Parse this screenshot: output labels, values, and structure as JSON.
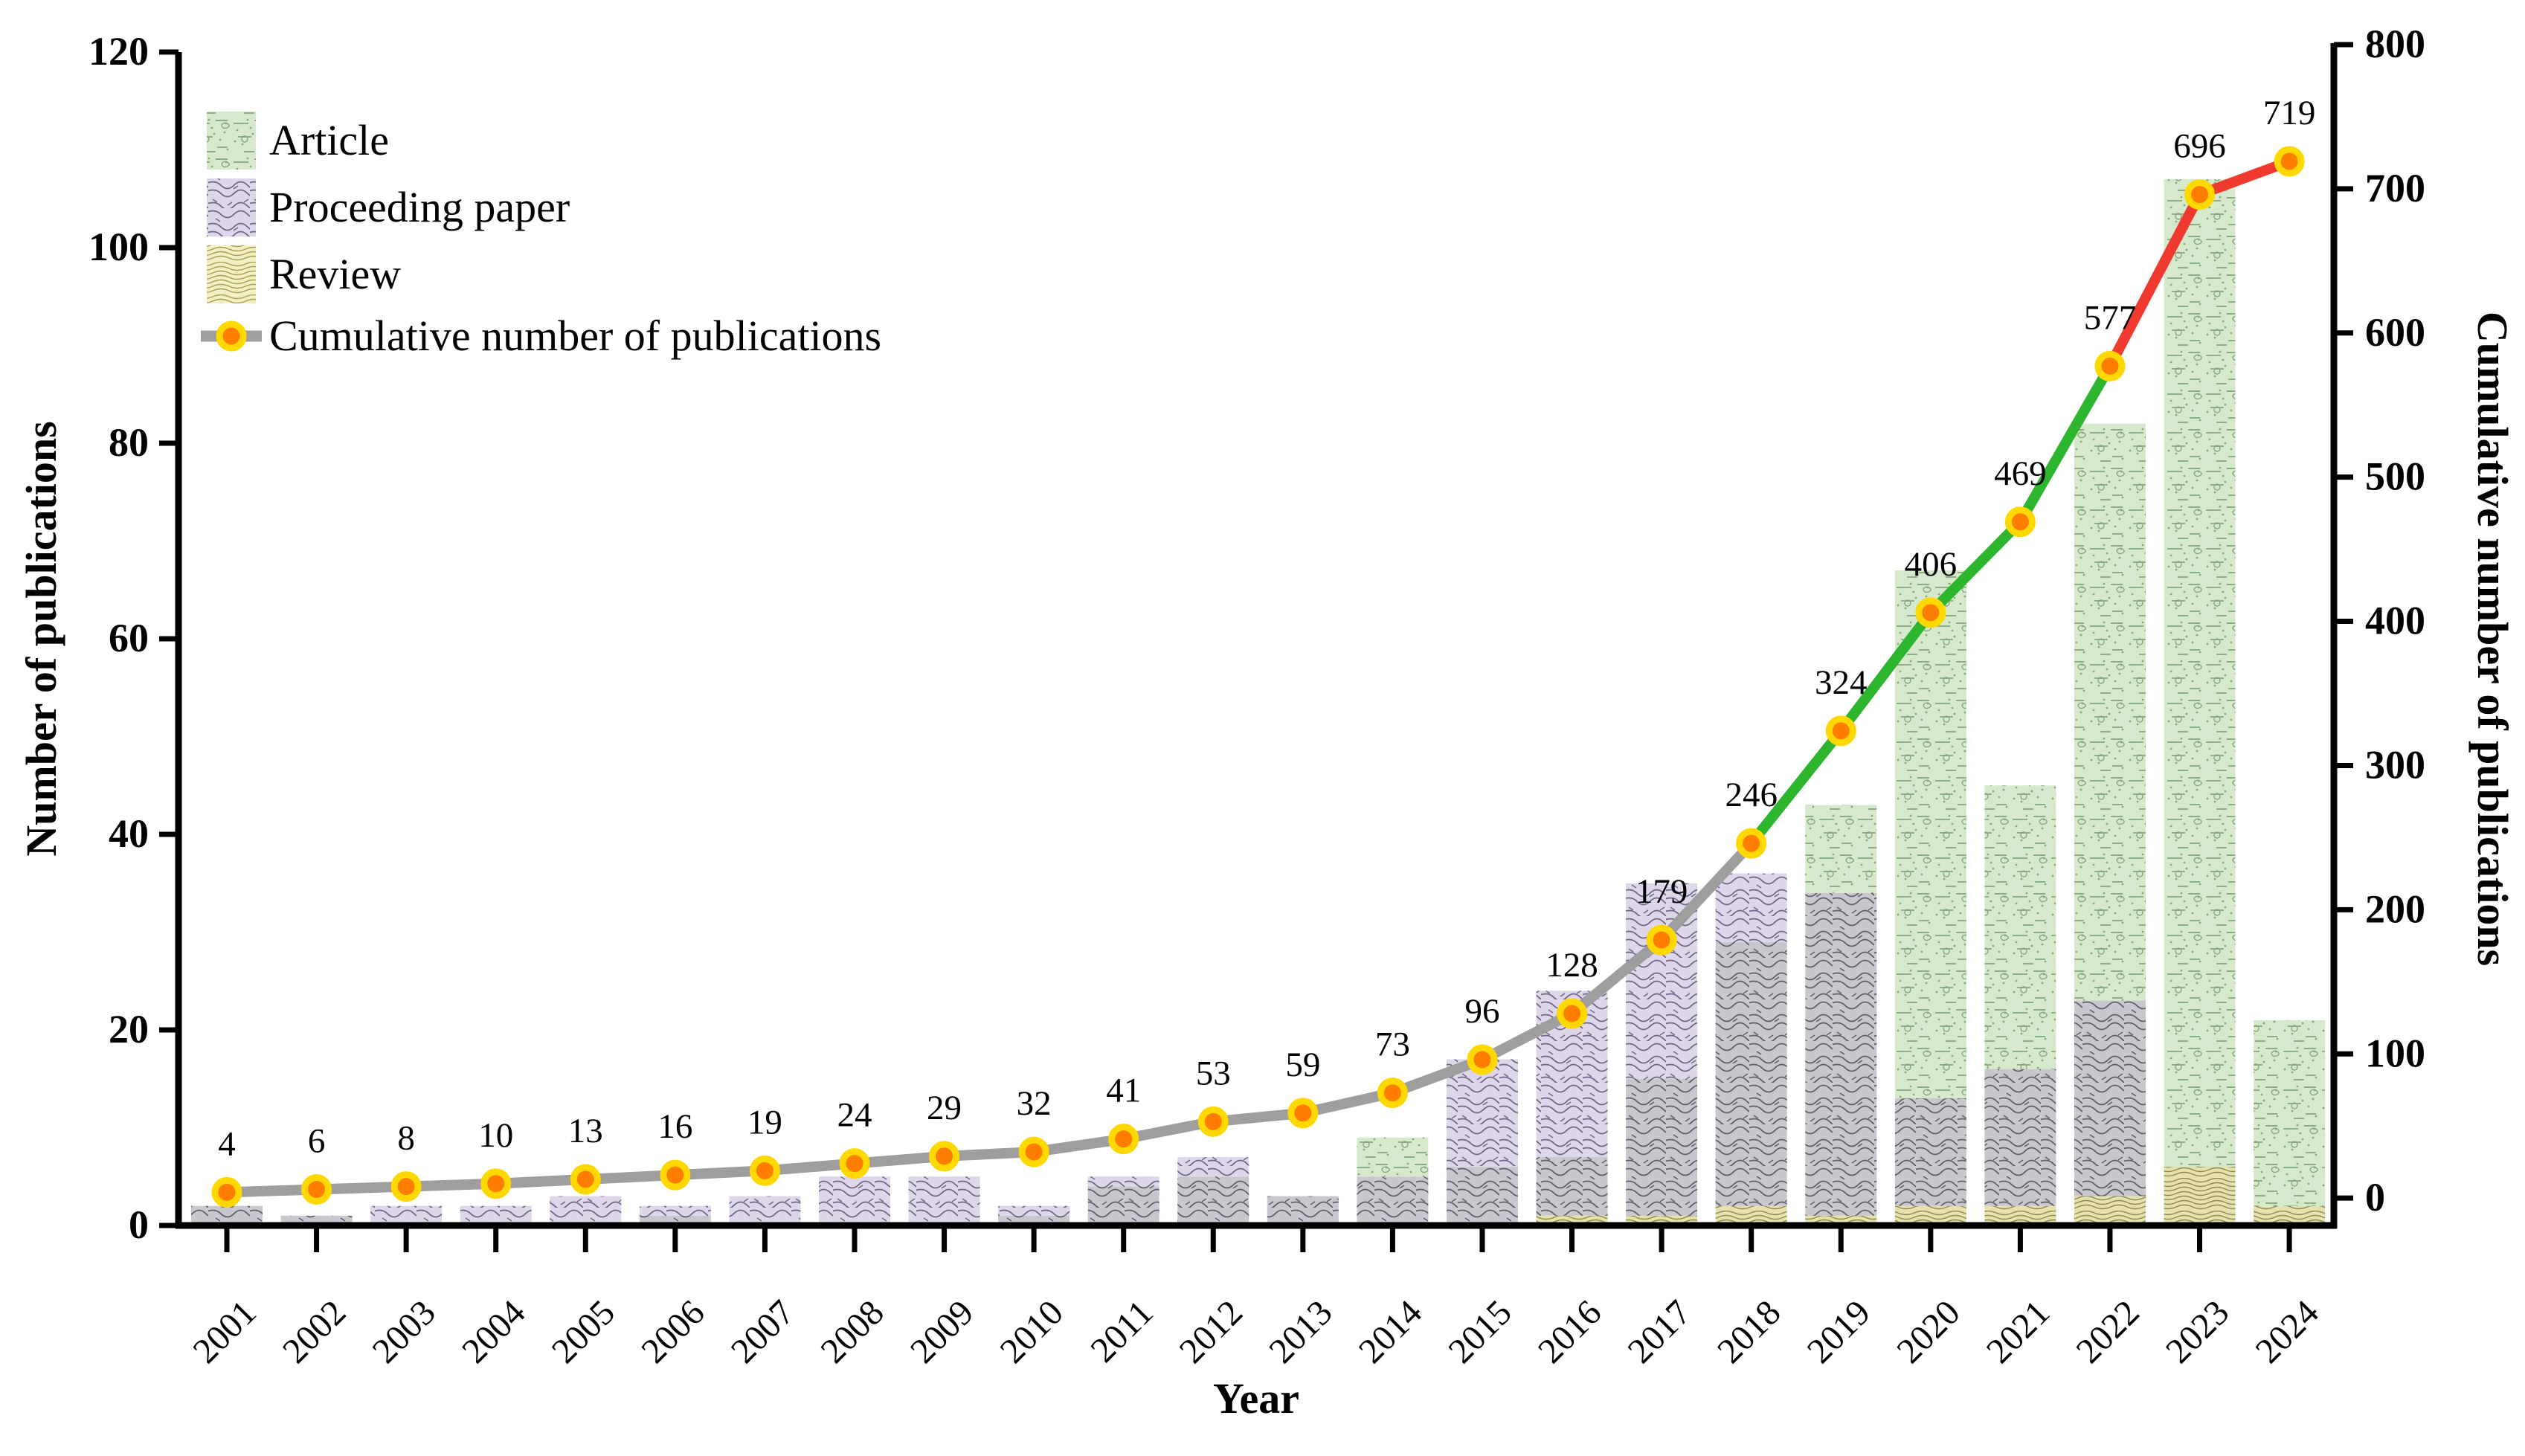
{
  "chart_data": {
    "type": "bar",
    "subtype": "overlapped-bars-with-cumulative-line",
    "title": "",
    "xlabel": "Year",
    "years": [
      2001,
      2002,
      2003,
      2004,
      2005,
      2006,
      2007,
      2008,
      2009,
      2010,
      2011,
      2012,
      2013,
      2014,
      2015,
      2016,
      2017,
      2018,
      2019,
      2020,
      2021,
      2022,
      2023,
      2024
    ],
    "series": [
      {
        "name": "Article",
        "values": [
          2,
          1,
          0,
          0,
          0,
          1,
          0,
          0,
          0,
          1,
          4,
          5,
          3,
          9,
          6,
          7,
          15,
          29,
          43,
          67,
          45,
          82,
          107,
          21
        ]
      },
      {
        "name": "Proceeding paper",
        "values": [
          2,
          1,
          2,
          2,
          3,
          2,
          3,
          5,
          5,
          2,
          5,
          7,
          3,
          5,
          17,
          24,
          35,
          36,
          34,
          13,
          16,
          23,
          6,
          0
        ]
      },
      {
        "name": "Review",
        "values": [
          0,
          0,
          0,
          0,
          0,
          0,
          0,
          0,
          0,
          0,
          0,
          0,
          0,
          0,
          0,
          1,
          1,
          2,
          1,
          2,
          2,
          3,
          6,
          2
        ]
      }
    ],
    "cumulative": {
      "name": "Cumulative number of publications",
      "values": [
        4,
        6,
        8,
        10,
        13,
        16,
        19,
        24,
        29,
        32,
        41,
        53,
        59,
        73,
        96,
        128,
        179,
        246,
        324,
        406,
        469,
        577,
        696,
        719
      ],
      "point_labels": [
        "4",
        "6",
        "8",
        "10",
        "13",
        "16",
        "19",
        "24",
        "29",
        "32",
        "41",
        "53",
        "59",
        "73",
        "96",
        "128",
        "179",
        "246",
        "324",
        "406",
        "469",
        "577",
        "696",
        "719"
      ]
    },
    "left_axis": {
      "label": "Number of publications",
      "min": 0,
      "max": 120,
      "step": 20,
      "ticks": [
        "0",
        "20",
        "40",
        "60",
        "80",
        "100",
        "120"
      ]
    },
    "right_axis": {
      "label": "Cumulative number of publications",
      "min": 0,
      "max": 800,
      "step": 100,
      "ticks": [
        "0",
        "100",
        "200",
        "300",
        "400",
        "500",
        "600",
        "700",
        "800"
      ]
    },
    "legend": {
      "items": [
        "Article",
        "Proceeding paper",
        "Review",
        "Cumulative number of publications"
      ],
      "position": "top-left-inside"
    },
    "line_color_segments": [
      {
        "from": 2001,
        "to": 2018,
        "color": "#9e9e9e"
      },
      {
        "from": 2018,
        "to": 2022,
        "color": "#2db52d"
      },
      {
        "from": 2022,
        "to": 2024,
        "color": "#f0392f"
      }
    ],
    "colors": {
      "article_fill": "#d7e9cd",
      "article_stroke": "#84a97b",
      "proceeding_fill": "#ddd7e9",
      "proceeding_stroke": "#6f6886",
      "review_fill": "#f3f1c4",
      "review_stroke": "#a79d52",
      "overlap_fill": "#c8c7ce",
      "overlap_stroke": "#616069",
      "review_overlap_fill": "#e6e2ab",
      "review_overlap_stroke": "#8e8753",
      "line_gray": "#9e9e9e",
      "line_green": "#2db52d",
      "line_red": "#f0392f",
      "marker_fill": "#ff7d00",
      "marker_ring": "#ffd800",
      "axis_color": "#000000"
    }
  }
}
